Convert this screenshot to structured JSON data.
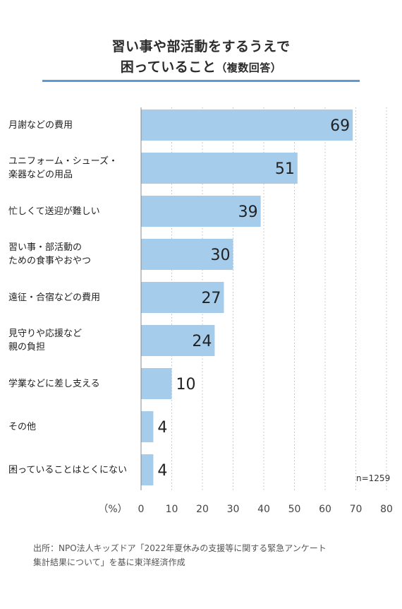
{
  "title": {
    "line1": "習い事や部活動をするうえで",
    "line2_main": "困っていること",
    "line2_paren": "（複数回答）"
  },
  "chart_data": {
    "type": "bar",
    "orientation": "horizontal",
    "categories": [
      [
        "月謝などの費用"
      ],
      [
        "ユニフォーム・シューズ・",
        "楽器などの用品"
      ],
      [
        "忙しくて送迎が難しい"
      ],
      [
        "習い事・部活動の",
        "ための食事やおやつ"
      ],
      [
        "遠征・合宿などの費用"
      ],
      [
        "見守りや応援など",
        "親の負担"
      ],
      [
        "学業などに差し支える"
      ],
      [
        "その他"
      ],
      [
        "困っていることはとくにない"
      ]
    ],
    "values": [
      69,
      51,
      39,
      30,
      27,
      24,
      10,
      4,
      4
    ],
    "xlim": [
      0,
      80
    ],
    "xticks": [
      0,
      10,
      20,
      30,
      40,
      50,
      60,
      70,
      80
    ],
    "x_unit_label": "（%）",
    "grid": "vertical dotted",
    "bar_color": "#a6ccec",
    "note": "n=1259"
  },
  "source": {
    "line1": "出所：NPO法人キッズドア「2022年夏休みの支援等に関する緊急アンケート",
    "line2": "集計結果について」を基に東洋経済作成"
  }
}
